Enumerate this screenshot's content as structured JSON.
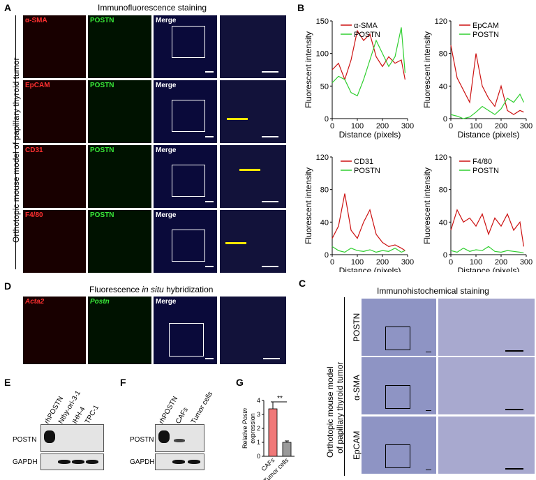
{
  "panels": {
    "A": "A",
    "B": "B",
    "C": "C",
    "D": "D",
    "E": "E",
    "F": "F",
    "G": "G"
  },
  "colors": {
    "red": "#ff3030",
    "green": "#38e838",
    "line_red": "#cc1111",
    "line_green": "#2fcf2f",
    "bar_caf": "#f07878",
    "bar_tumor": "#9a9a9a"
  },
  "panelA": {
    "title": "Immunofluorescence staining",
    "side_label": "Orthotopic mouse model of papillary thyroid tumor",
    "rows": [
      {
        "red": "α-SMA",
        "green": "POSTN",
        "merge": "Merge"
      },
      {
        "red": "EpCAM",
        "green": "POSTN",
        "merge": "Merge"
      },
      {
        "red": "CD31",
        "green": "POSTN",
        "merge": "Merge"
      },
      {
        "red": "F4/80",
        "green": "POSTN",
        "merge": "Merge"
      }
    ]
  },
  "panelD": {
    "title_pre": "Fluorescence ",
    "title_em": "in situ",
    "title_post": " hybridization",
    "labels": {
      "red": "Acta2",
      "green": "Postn",
      "merge": "Merge"
    }
  },
  "panelC": {
    "title": "Immunohistochemical staining",
    "side_label_1": "Orthotopic mouse model",
    "side_label_2": "of papillary thyroid tumor",
    "rows": [
      "POSTN",
      "α-SMA",
      "EpCAM"
    ]
  },
  "panelE": {
    "lanes": [
      "rhPOSTN",
      "Nthy-ori-3-1",
      "IHH-4",
      "TPC-1"
    ],
    "rows": [
      "POSTN",
      "GAPDH"
    ]
  },
  "panelF": {
    "lanes": [
      "rhPOSTN",
      "CAFs",
      "Tumor cells"
    ],
    "rows": [
      "POSTN",
      "GAPDH"
    ]
  },
  "chart_data": [
    {
      "type": "line",
      "panel": "B",
      "title": "",
      "xlabel": "Distance (pixels)",
      "ylabel": "Fluorescent intensity",
      "xlim": [
        0,
        300
      ],
      "ylim": [
        0,
        150
      ],
      "xticks": [
        0,
        100,
        200,
        300
      ],
      "yticks": [
        0,
        50,
        100,
        150
      ],
      "x": [
        0,
        25,
        50,
        75,
        100,
        125,
        150,
        175,
        200,
        225,
        250,
        275,
        290
      ],
      "series": [
        {
          "name": "α-SMA",
          "values": [
            75,
            85,
            60,
            90,
            135,
            120,
            130,
            95,
            80,
            95,
            85,
            90,
            60
          ]
        },
        {
          "name": "POSTN",
          "values": [
            55,
            65,
            60,
            40,
            35,
            60,
            90,
            120,
            100,
            80,
            95,
            140,
            70
          ]
        }
      ]
    },
    {
      "type": "line",
      "panel": "B",
      "title": "",
      "xlabel": "Distance (pixels)",
      "ylabel": "Fluorescent intensity",
      "xlim": [
        0,
        300
      ],
      "ylim": [
        0,
        120
      ],
      "xticks": [
        0,
        100,
        200,
        300
      ],
      "yticks": [
        0,
        40,
        80,
        120
      ],
      "x": [
        0,
        25,
        50,
        75,
        100,
        125,
        150,
        175,
        200,
        225,
        250,
        275,
        290
      ],
      "series": [
        {
          "name": "EpCAM",
          "values": [
            90,
            50,
            35,
            20,
            80,
            40,
            25,
            15,
            40,
            10,
            5,
            10,
            8
          ]
        },
        {
          "name": "POSTN",
          "values": [
            5,
            3,
            0,
            2,
            8,
            15,
            10,
            5,
            12,
            25,
            20,
            30,
            20
          ]
        }
      ]
    },
    {
      "type": "line",
      "panel": "B",
      "title": "",
      "xlabel": "Distance (pixels)",
      "ylabel": "Fluorescent intensity",
      "xlim": [
        0,
        300
      ],
      "ylim": [
        0,
        120
      ],
      "xticks": [
        0,
        100,
        200,
        300
      ],
      "yticks": [
        0,
        40,
        80,
        120
      ],
      "x": [
        0,
        25,
        50,
        75,
        100,
        125,
        150,
        175,
        200,
        225,
        250,
        275,
        290
      ],
      "series": [
        {
          "name": "CD31",
          "values": [
            20,
            35,
            75,
            30,
            20,
            40,
            55,
            25,
            15,
            10,
            12,
            8,
            5
          ]
        },
        {
          "name": "POSTN",
          "values": [
            10,
            5,
            3,
            8,
            5,
            4,
            6,
            3,
            5,
            4,
            8,
            3,
            5
          ]
        }
      ]
    },
    {
      "type": "line",
      "panel": "B",
      "title": "",
      "xlabel": "Distance (pixels)",
      "ylabel": "Fluorescent intensity",
      "xlim": [
        0,
        300
      ],
      "ylim": [
        0,
        120
      ],
      "xticks": [
        0,
        100,
        200,
        300
      ],
      "yticks": [
        0,
        40,
        80,
        120
      ],
      "x": [
        0,
        25,
        50,
        75,
        100,
        125,
        150,
        175,
        200,
        225,
        250,
        275,
        290
      ],
      "series": [
        {
          "name": "F4/80",
          "values": [
            30,
            55,
            40,
            45,
            35,
            50,
            25,
            45,
            35,
            50,
            30,
            40,
            10
          ]
        },
        {
          "name": "POSTN",
          "values": [
            5,
            3,
            8,
            4,
            6,
            5,
            10,
            4,
            3,
            5,
            4,
            3,
            2
          ]
        }
      ]
    },
    {
      "type": "bar",
      "panel": "G",
      "categories": [
        "CAFs",
        "Tumor cells"
      ],
      "values": [
        3.4,
        1.0
      ],
      "errors": [
        0.5,
        0.1
      ],
      "ylabel_line1": "Relative ",
      "ylabel_em": "Postn",
      "ylabel_line2": "expression",
      "ylim": [
        0,
        4
      ],
      "yticks": [
        0,
        1,
        2,
        3,
        4
      ],
      "significance": "**"
    }
  ]
}
